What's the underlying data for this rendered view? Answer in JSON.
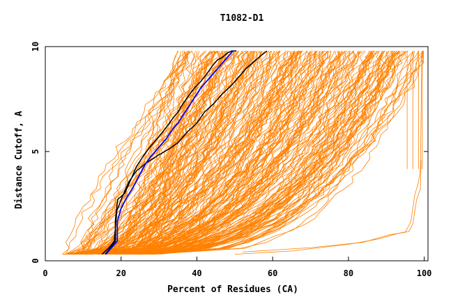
{
  "chart_data": {
    "type": "line",
    "title": "T1082-D1",
    "xlabel": "Percent of Residues (CA)",
    "ylabel": "Distance Cutoff, A",
    "xlim": [
      0,
      101
    ],
    "ylim": [
      0,
      9.8
    ],
    "x_ticks": [
      0,
      20,
      40,
      60,
      80,
      100
    ],
    "y_ticks": [
      0,
      5,
      10
    ],
    "grid": false,
    "legend": "none",
    "colors": {
      "models": "#ff8000",
      "highlight_black": "#000000",
      "highlight_blue": "#0000ff"
    },
    "series": [
      {
        "color": "#000000",
        "x": [
          15.8,
          17.2,
          18.5,
          18.5,
          19.1,
          21.0,
          22.8,
          24.0,
          25.9,
          27.6,
          29.1,
          30.5,
          31.9,
          33.6,
          35.0,
          36.0,
          37.6,
          39.3,
          41.0,
          42.4,
          44.0,
          45.5,
          46.7,
          48.0,
          49.2,
          50.4
        ],
        "y": [
          0.3,
          0.6,
          0.9,
          1.9,
          2.8,
          3.1,
          3.8,
          4.3,
          4.8,
          5.2,
          5.5,
          5.8,
          6.1,
          6.5,
          6.8,
          7.1,
          7.5,
          7.9,
          8.2,
          8.5,
          8.9,
          9.2,
          9.3,
          9.5,
          9.6,
          9.6
        ]
      },
      {
        "color": "#000000",
        "x": [
          15.0,
          16.8,
          18.2,
          18.9,
          20.5,
          22.0,
          24.0,
          26.8,
          29.5,
          32.5,
          35.0,
          37.5,
          40.0,
          42.0,
          44.5,
          46.5,
          49.0,
          51.0,
          53.0,
          55.0,
          57.0,
          58.5
        ],
        "y": [
          0.3,
          0.6,
          0.9,
          2.3,
          3.0,
          3.6,
          4.1,
          4.5,
          4.8,
          5.1,
          5.4,
          5.9,
          6.3,
          6.8,
          7.2,
          7.6,
          8.0,
          8.4,
          8.8,
          9.1,
          9.4,
          9.6
        ]
      },
      {
        "color": "#0000ff",
        "x": [
          16.0,
          17.5,
          19.0,
          19.0,
          20.0,
          21.5,
          23.0,
          24.5,
          26.0,
          27.5,
          29.0,
          30.5,
          32.0,
          33.5,
          35.0,
          36.5,
          38.0,
          39.5,
          41.0,
          42.5,
          44.0,
          45.5,
          47.0,
          48.5,
          49.5
        ],
        "y": [
          0.3,
          0.6,
          0.9,
          1.8,
          2.4,
          2.9,
          3.3,
          3.8,
          4.3,
          4.7,
          5.0,
          5.3,
          5.6,
          6.0,
          6.3,
          6.7,
          7.1,
          7.5,
          7.9,
          8.2,
          8.5,
          8.8,
          9.1,
          9.4,
          9.6
        ]
      }
    ]
  }
}
